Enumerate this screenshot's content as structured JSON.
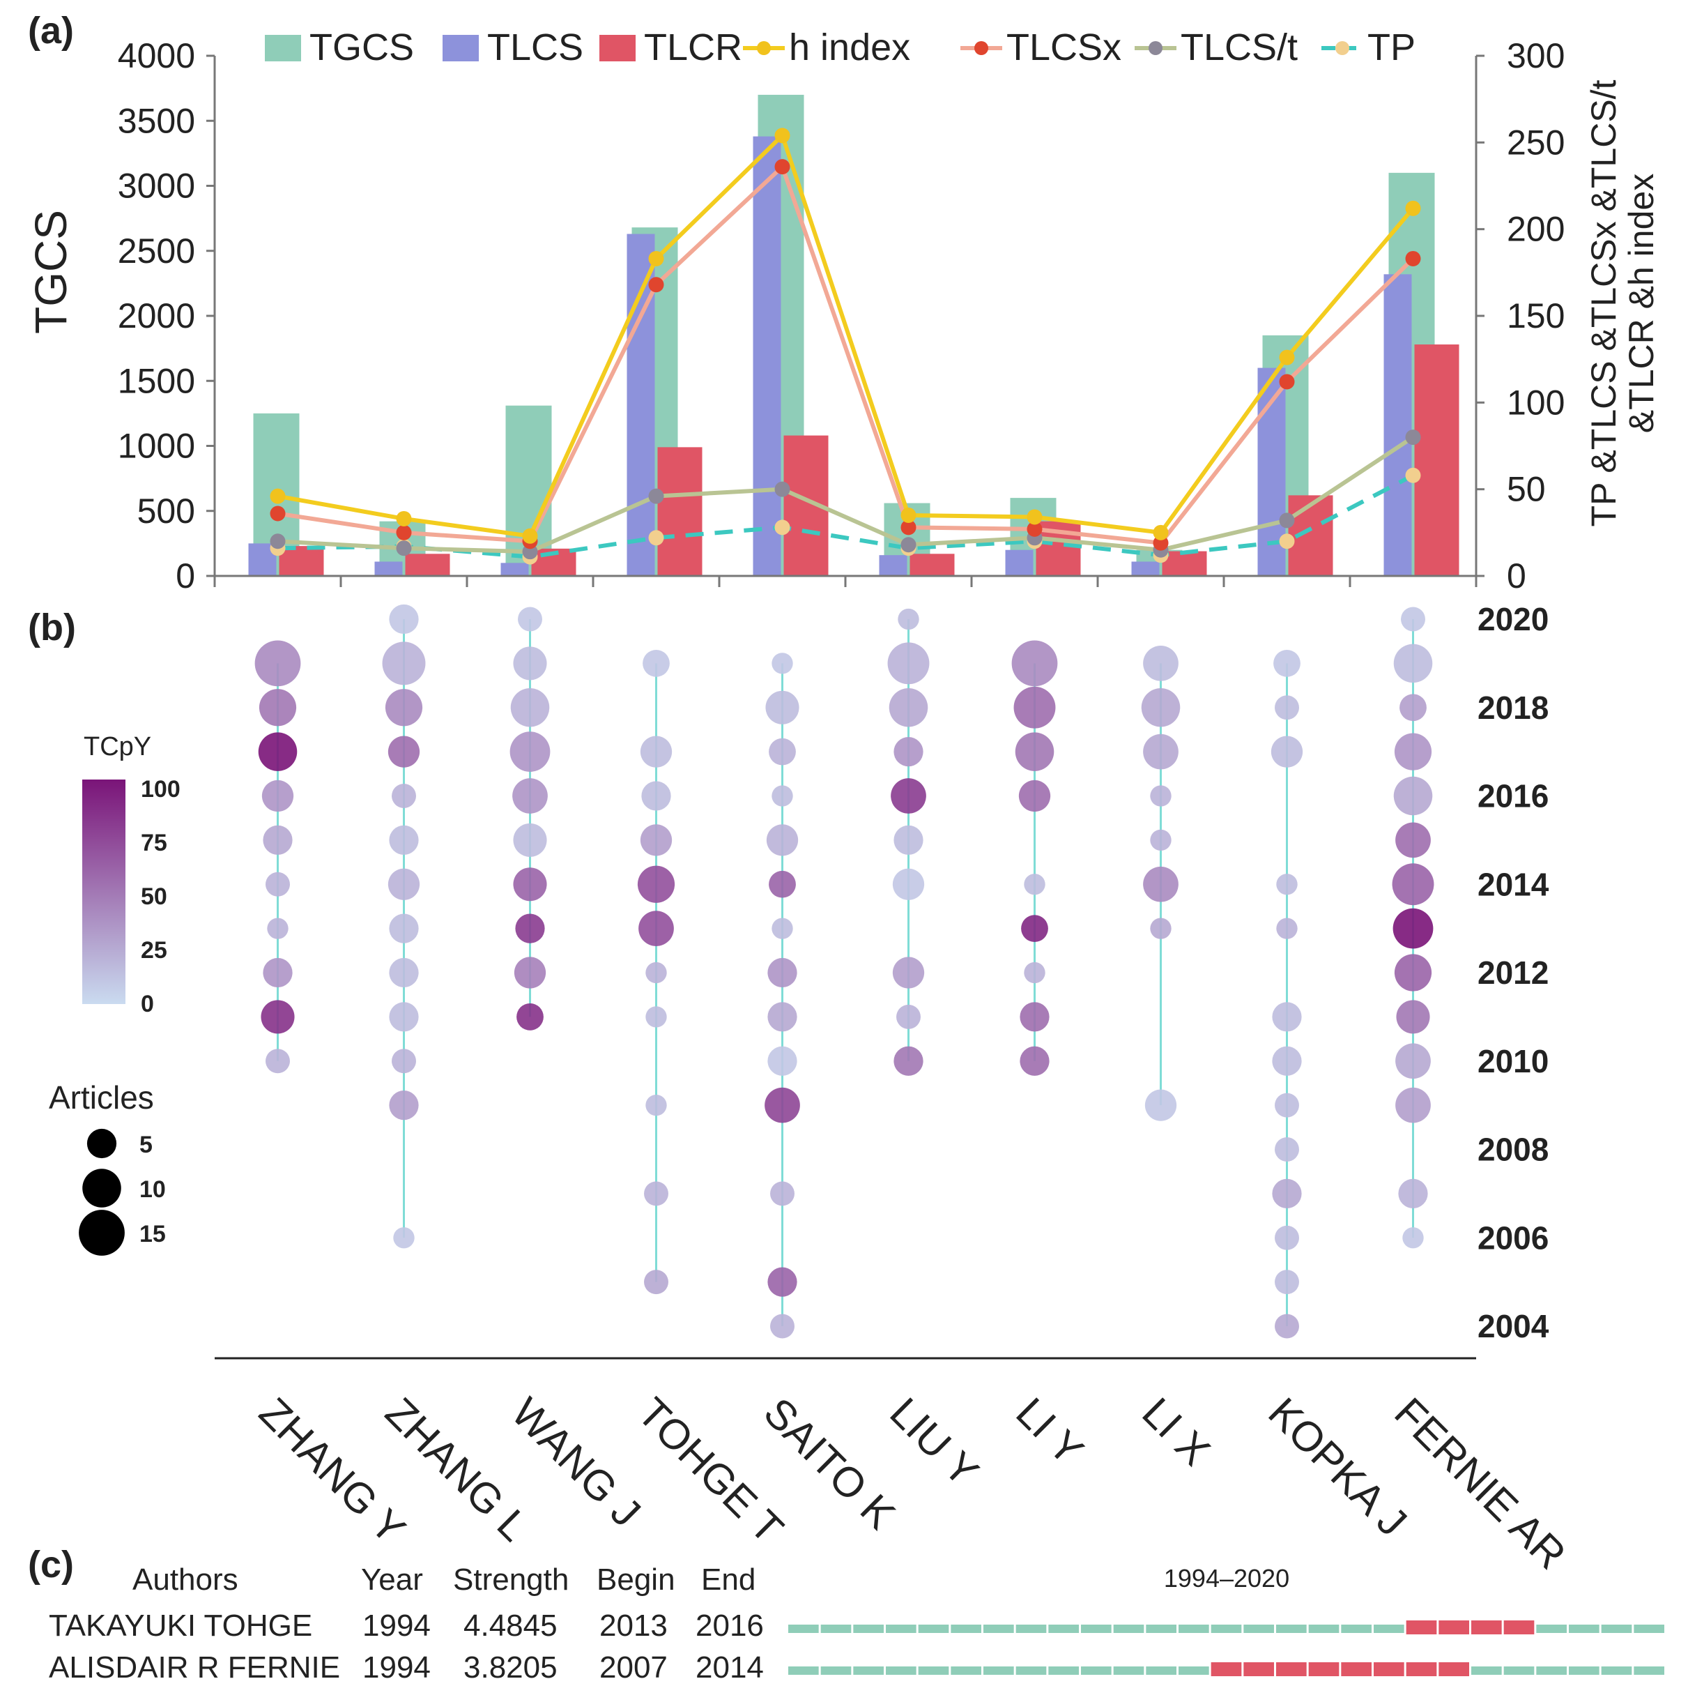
{
  "panel_labels": {
    "a": "(a)",
    "b": "(b)",
    "c": "(c)"
  },
  "chart_data": [
    {
      "type": "bar",
      "panel": "(a)",
      "categories": [
        "ZHANG Y",
        "ZHANG L",
        "WANG J",
        "TOHGE T",
        "SAITO K",
        "LIU Y",
        "LI Y",
        "LI X",
        "KOPKA J",
        "FERNIE AR"
      ],
      "ylabel": "TGCS",
      "y2label_lines": [
        "TP &TLCS &TLCSx &TLCS/t",
        "&TLCR &h index"
      ],
      "ylim": [
        0,
        4000
      ],
      "y2lim": [
        0,
        300
      ],
      "yticks": [
        "0",
        "500",
        "1000",
        "1500",
        "2000",
        "2500",
        "3000",
        "3500",
        "4000"
      ],
      "y2ticks": [
        "0",
        "50",
        "100",
        "150",
        "200",
        "250",
        "300"
      ],
      "series_bar": [
        {
          "name": "TGCS",
          "color": "#8fcdb8",
          "axis": "left",
          "values": [
            1250,
            420,
            1310,
            2680,
            3700,
            560,
            600,
            200,
            1850,
            3100
          ]
        },
        {
          "name": "TLCS",
          "color": "#8d92db",
          "axis": "left",
          "values": [
            250,
            110,
            100,
            2630,
            3380,
            160,
            200,
            110,
            1600,
            2320
          ]
        },
        {
          "name": "TLCR",
          "color": "#e05565",
          "axis": "left",
          "values": [
            230,
            170,
            210,
            990,
            1080,
            170,
            420,
            190,
            620,
            1780
          ]
        }
      ],
      "series_line": [
        {
          "name": "h index",
          "color": "#f3cc1e",
          "marker": "#f1c21d",
          "axis": "right",
          "values": [
            46,
            33,
            23,
            183,
            254,
            35,
            34,
            25,
            126,
            212
          ]
        },
        {
          "name": "TLCSx",
          "color": "#f2a895",
          "marker": "#e0452e",
          "axis": "right",
          "values": [
            36,
            25,
            20,
            168,
            236,
            28,
            27,
            19,
            112,
            183
          ]
        },
        {
          "name": "TLCS/t",
          "color": "#b9c493",
          "marker": "#8c8898",
          "axis": "right",
          "values": [
            20,
            16,
            14,
            46,
            50,
            18,
            22,
            15,
            32,
            80
          ]
        },
        {
          "name": "TP",
          "color": "#3cc8c0",
          "marker": "#f2cf8e",
          "axis": "right",
          "dashed": true,
          "values": [
            16,
            17,
            11,
            22,
            28,
            16,
            20,
            12,
            20,
            58
          ]
        }
      ],
      "legend": [
        "TGCS",
        "TLCS",
        "TLCR",
        "h  index",
        "TLCSx",
        "TLCS/t",
        "TP"
      ]
    },
    {
      "type": "scatter",
      "panel": "(b)",
      "categories": [
        "ZHANG Y",
        "ZHANG L",
        "WANG J",
        "TOHGE T",
        "SAITO K",
        "LIU Y",
        "LI Y",
        "LI X",
        "KOPKA J",
        "FERNIE AR"
      ],
      "yticks": [
        "2004",
        "2006",
        "2008",
        "2010",
        "2012",
        "2014",
        "2016",
        "2018",
        "2020"
      ],
      "ylim": [
        2004,
        2020
      ],
      "color_legend_title": "TCpY",
      "color_legend_ticks": [
        "100",
        "75",
        "50",
        "25",
        "0"
      ],
      "size_legend_title": "Articles",
      "size_legend_ticks": [
        "5",
        "10",
        "15"
      ],
      "stem_color": "#7fdcd6",
      "points": [
        [
          [
            2019,
            15,
            40
          ],
          [
            2018,
            9,
            50
          ],
          [
            2017,
            10,
            100
          ],
          [
            2016,
            6,
            35
          ],
          [
            2015,
            5,
            25
          ],
          [
            2014,
            3,
            20
          ],
          [
            2013,
            2,
            20
          ],
          [
            2012,
            5,
            35
          ],
          [
            2011,
            7,
            85
          ],
          [
            2010,
            3,
            20
          ]
        ],
        [
          [
            2020,
            5,
            10
          ],
          [
            2019,
            13,
            20
          ],
          [
            2018,
            9,
            40
          ],
          [
            2017,
            6,
            55
          ],
          [
            2016,
            3,
            20
          ],
          [
            2015,
            5,
            15
          ],
          [
            2014,
            6,
            20
          ],
          [
            2013,
            5,
            15
          ],
          [
            2012,
            5,
            15
          ],
          [
            2011,
            5,
            15
          ],
          [
            2010,
            3,
            20
          ],
          [
            2009,
            5,
            30
          ],
          [
            2006,
            2,
            10
          ]
        ],
        [
          [
            2020,
            3,
            10
          ],
          [
            2019,
            7,
            15
          ],
          [
            2018,
            10,
            20
          ],
          [
            2017,
            11,
            35
          ],
          [
            2016,
            8,
            35
          ],
          [
            2015,
            7,
            15
          ],
          [
            2014,
            7,
            60
          ],
          [
            2013,
            5,
            80
          ],
          [
            2012,
            6,
            45
          ],
          [
            2011,
            4,
            85
          ]
        ],
        [
          [
            2019,
            4,
            10
          ],
          [
            2017,
            6,
            15
          ],
          [
            2016,
            5,
            15
          ],
          [
            2015,
            6,
            30
          ],
          [
            2014,
            9,
            70
          ],
          [
            2013,
            8,
            70
          ],
          [
            2012,
            2,
            20
          ],
          [
            2011,
            2,
            15
          ],
          [
            2009,
            2,
            15
          ],
          [
            2007,
            3,
            20
          ],
          [
            2005,
            3,
            25
          ]
        ],
        [
          [
            2019,
            2,
            10
          ],
          [
            2018,
            7,
            15
          ],
          [
            2017,
            4,
            20
          ],
          [
            2016,
            2,
            15
          ],
          [
            2015,
            6,
            20
          ],
          [
            2014,
            4,
            60
          ],
          [
            2013,
            2,
            15
          ],
          [
            2012,
            5,
            35
          ],
          [
            2011,
            5,
            25
          ],
          [
            2010,
            5,
            10
          ],
          [
            2009,
            8,
            75
          ],
          [
            2007,
            3,
            20
          ],
          [
            2005,
            5,
            60
          ],
          [
            2004,
            3,
            20
          ]
        ],
        [
          [
            2020,
            2,
            15
          ],
          [
            2019,
            12,
            20
          ],
          [
            2018,
            10,
            25
          ],
          [
            2017,
            5,
            35
          ],
          [
            2016,
            8,
            80
          ],
          [
            2015,
            5,
            15
          ],
          [
            2014,
            6,
            10
          ],
          [
            2012,
            6,
            30
          ],
          [
            2011,
            3,
            20
          ],
          [
            2010,
            5,
            50
          ]
        ],
        [
          [
            2019,
            15,
            40
          ],
          [
            2018,
            12,
            55
          ],
          [
            2017,
            10,
            50
          ],
          [
            2016,
            6,
            55
          ],
          [
            2014,
            2,
            15
          ],
          [
            2013,
            4,
            90
          ],
          [
            2012,
            2,
            20
          ],
          [
            2011,
            5,
            55
          ],
          [
            2010,
            5,
            55
          ]
        ],
        [
          [
            2019,
            8,
            15
          ],
          [
            2018,
            10,
            25
          ],
          [
            2017,
            8,
            25
          ],
          [
            2016,
            2,
            20
          ],
          [
            2015,
            2,
            20
          ],
          [
            2014,
            8,
            40
          ],
          [
            2013,
            2,
            25
          ],
          [
            2009,
            6,
            10
          ]
        ],
        [
          [
            2019,
            4,
            10
          ],
          [
            2018,
            3,
            15
          ],
          [
            2017,
            6,
            15
          ],
          [
            2014,
            2,
            15
          ],
          [
            2013,
            2,
            20
          ],
          [
            2011,
            5,
            15
          ],
          [
            2010,
            5,
            15
          ],
          [
            2009,
            3,
            15
          ],
          [
            2008,
            3,
            15
          ],
          [
            2007,
            5,
            25
          ],
          [
            2006,
            3,
            15
          ],
          [
            2005,
            3,
            15
          ],
          [
            2004,
            3,
            25
          ]
        ],
        [
          [
            2020,
            3,
            10
          ],
          [
            2019,
            10,
            15
          ],
          [
            2018,
            4,
            30
          ],
          [
            2017,
            9,
            35
          ],
          [
            2016,
            10,
            25
          ],
          [
            2015,
            8,
            55
          ],
          [
            2014,
            12,
            60
          ],
          [
            2013,
            11,
            100
          ],
          [
            2012,
            9,
            60
          ],
          [
            2011,
            7,
            50
          ],
          [
            2010,
            8,
            25
          ],
          [
            2009,
            8,
            30
          ],
          [
            2007,
            5,
            20
          ],
          [
            2006,
            2,
            10
          ]
        ]
      ]
    }
  ],
  "burst_table": {
    "headers": [
      "Authors",
      "Year",
      "Strength",
      "Begin",
      "End",
      "1994–2020"
    ],
    "range": [
      1994,
      2020
    ],
    "rows": [
      {
        "author": "TAKAYUKI TOHGE",
        "year": "1994",
        "strength": "4.4845",
        "begin": "2013",
        "end": "2016",
        "begin_n": 2013,
        "end_n": 2016
      },
      {
        "author": "ALISDAIR R FERNIE",
        "year": "1994",
        "strength": "3.8205",
        "begin": "2007",
        "end": "2014",
        "begin_n": 2007,
        "end_n": 2014
      }
    ],
    "base_color": "#8fcdb8",
    "burst_color": "#e05565"
  }
}
